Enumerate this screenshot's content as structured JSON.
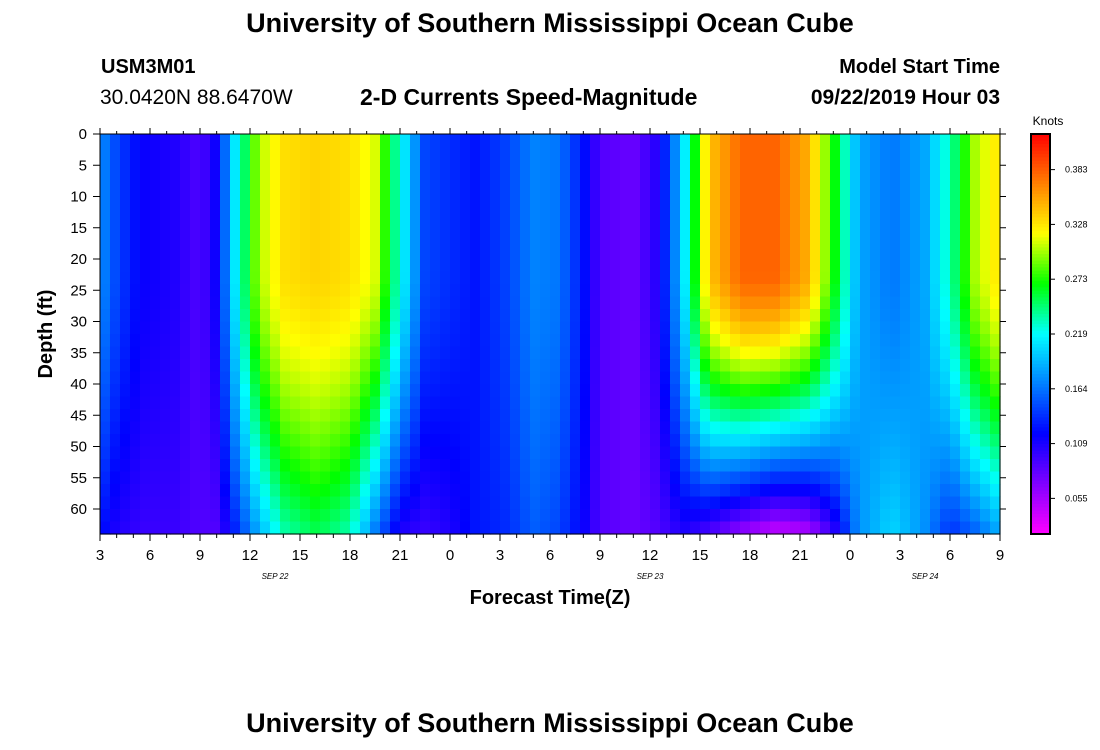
{
  "header": {
    "title": "University of Southern Mississippi Ocean Cube",
    "station_id": "USM3M01",
    "coordinates": "30.0420N 88.6470W",
    "subtitle": "2-D Currents Speed-Magnitude",
    "model_start_label": "Model Start Time",
    "model_start_value": "09/22/2019 Hour 03"
  },
  "footer": {
    "title": "University of Southern Mississippi Ocean Cube"
  },
  "chart_data": {
    "type": "heatmap",
    "title": "2-D Currents Speed-Magnitude",
    "xlabel": "Forecast Time(Z)",
    "ylabel": "Depth (ft)",
    "x_hours_range": [
      0,
      54
    ],
    "x_ticks": [
      {
        "hour": 0,
        "label": "3"
      },
      {
        "hour": 3,
        "label": "6"
      },
      {
        "hour": 6,
        "label": "9"
      },
      {
        "hour": 9,
        "label": "12"
      },
      {
        "hour": 12,
        "label": "15"
      },
      {
        "hour": 15,
        "label": "18"
      },
      {
        "hour": 18,
        "label": "21"
      },
      {
        "hour": 21,
        "label": "0"
      },
      {
        "hour": 24,
        "label": "3"
      },
      {
        "hour": 27,
        "label": "6"
      },
      {
        "hour": 30,
        "label": "9"
      },
      {
        "hour": 33,
        "label": "12"
      },
      {
        "hour": 36,
        "label": "15"
      },
      {
        "hour": 39,
        "label": "18"
      },
      {
        "hour": 42,
        "label": "21"
      },
      {
        "hour": 45,
        "label": "0"
      },
      {
        "hour": 48,
        "label": "3"
      },
      {
        "hour": 51,
        "label": "6"
      },
      {
        "hour": 54,
        "label": "9"
      }
    ],
    "date_labels": [
      {
        "hour": 10.5,
        "label": "SEP 22"
      },
      {
        "hour": 33,
        "label": "SEP 23"
      },
      {
        "hour": 49.5,
        "label": "SEP 24"
      }
    ],
    "y_range": [
      0,
      64
    ],
    "y_ticks": [
      0,
      5,
      10,
      15,
      20,
      25,
      30,
      35,
      40,
      45,
      50,
      55,
      60
    ],
    "colorbar": {
      "unit": "Knots",
      "min": 0.01,
      "max": 0.42,
      "ticks": [
        "0.383",
        "0.328",
        "0.273",
        "0.219",
        "0.164",
        "0.109",
        "0.055"
      ],
      "colors": [
        "#ff00ff",
        "#8000ff",
        "#0000ff",
        "#0080ff",
        "#00ffff",
        "#00ff00",
        "#ffff00",
        "#ff8000",
        "#ff0000"
      ]
    },
    "speed_profile_columns": [
      {
        "hour": 0,
        "top": 0.17,
        "bottom": 0.12
      },
      {
        "hour": 1,
        "top": 0.14,
        "bottom": 0.1
      },
      {
        "hour": 2.5,
        "top": 0.11,
        "bottom": 0.09
      },
      {
        "hour": 4.5,
        "top": 0.1,
        "bottom": 0.09
      },
      {
        "hour": 6,
        "top": 0.08,
        "bottom": 0.08
      },
      {
        "hour": 7,
        "top": 0.11,
        "bottom": 0.08
      },
      {
        "hour": 8,
        "top": 0.2,
        "bottom": 0.12
      },
      {
        "hour": 9.5,
        "top": 0.3,
        "bottom": 0.18
      },
      {
        "hour": 11,
        "top": 0.33,
        "bottom": 0.23
      },
      {
        "hour": 13,
        "top": 0.335,
        "bottom": 0.25
      },
      {
        "hour": 15,
        "top": 0.33,
        "bottom": 0.23
      },
      {
        "hour": 16.5,
        "top": 0.31,
        "bottom": 0.16
      },
      {
        "hour": 18,
        "top": 0.22,
        "bottom": 0.1
      },
      {
        "hour": 19.5,
        "top": 0.14,
        "bottom": 0.09
      },
      {
        "hour": 21,
        "top": 0.13,
        "bottom": 0.1
      },
      {
        "hour": 22.5,
        "top": 0.12,
        "bottom": 0.12
      },
      {
        "hour": 24.5,
        "top": 0.14,
        "bottom": 0.13
      },
      {
        "hour": 26,
        "top": 0.165,
        "bottom": 0.15
      },
      {
        "hour": 27.5,
        "top": 0.16,
        "bottom": 0.14
      },
      {
        "hour": 29,
        "top": 0.12,
        "bottom": 0.11
      },
      {
        "hour": 30,
        "top": 0.08,
        "bottom": 0.08
      },
      {
        "hour": 32,
        "top": 0.07,
        "bottom": 0.07
      },
      {
        "hour": 33.5,
        "top": 0.1,
        "bottom": 0.08
      },
      {
        "hour": 35,
        "top": 0.2,
        "bottom": 0.1
      },
      {
        "hour": 36.5,
        "top": 0.34,
        "bottom": 0.08
      },
      {
        "hour": 38.5,
        "top": 0.38,
        "bottom": 0.05
      },
      {
        "hour": 40.5,
        "top": 0.38,
        "bottom": 0.03
      },
      {
        "hour": 42.5,
        "top": 0.35,
        "bottom": 0.04
      },
      {
        "hour": 44,
        "top": 0.27,
        "bottom": 0.09
      },
      {
        "hour": 45.5,
        "top": 0.18,
        "bottom": 0.17
      },
      {
        "hour": 47.5,
        "top": 0.16,
        "bottom": 0.2
      },
      {
        "hour": 49.5,
        "top": 0.18,
        "bottom": 0.17
      },
      {
        "hour": 51,
        "top": 0.23,
        "bottom": 0.13
      },
      {
        "hour": 52.5,
        "top": 0.3,
        "bottom": 0.15
      },
      {
        "hour": 54,
        "top": 0.33,
        "bottom": 0.18
      }
    ]
  }
}
